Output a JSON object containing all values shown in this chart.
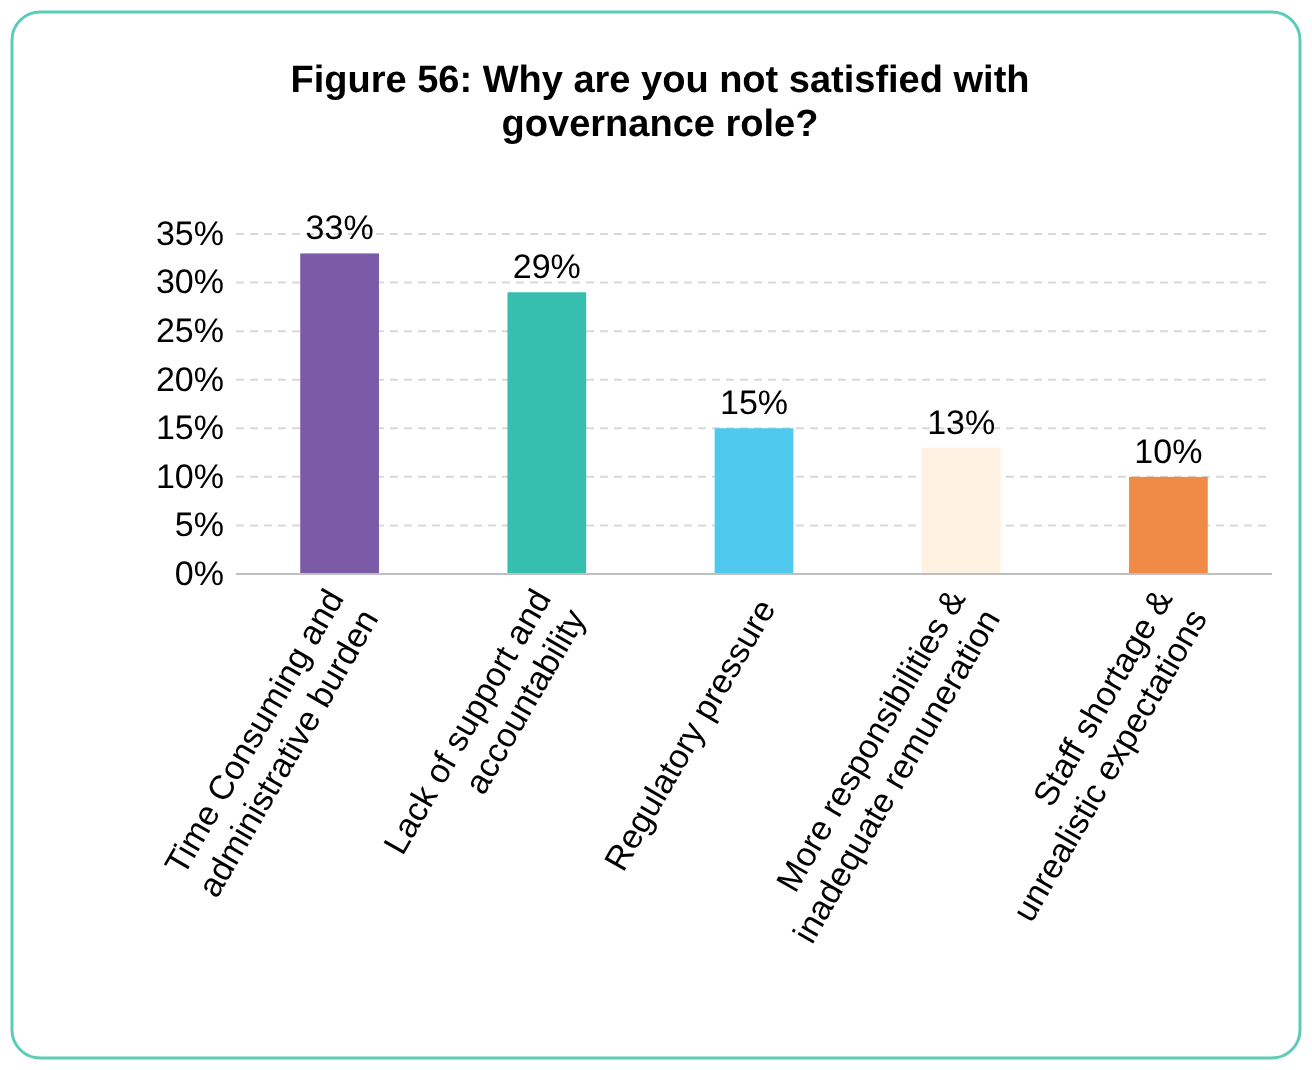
{
  "chart_data": {
    "type": "bar",
    "title": "Figure 56: Why are you not satisfied with governance role?",
    "categories": [
      "Time Consuming and administrative burden",
      "Lack of support and accountability",
      "Regulatory pressure",
      "More responsibilities & inadequate remuneration",
      "Staff shortage & unrealistic expectations"
    ],
    "values": [
      33,
      29,
      15,
      13,
      10
    ],
    "colors": [
      "#7b5ba7",
      "#36bfae",
      "#4fc8ee",
      "#fdf1e2",
      "#ef8b47"
    ],
    "ylim": [
      0,
      35
    ],
    "yticks": [
      {
        "value": 0,
        "label": "0%"
      },
      {
        "value": 5,
        "label": "5%"
      },
      {
        "value": 10,
        "label": "10%"
      },
      {
        "value": 15,
        "label": "15%"
      },
      {
        "value": 20,
        "label": "20%"
      },
      {
        "value": 25,
        "label": "25%"
      },
      {
        "value": 30,
        "label": "30%"
      },
      {
        "value": 35,
        "label": "35%"
      }
    ],
    "grid": "y",
    "value_labels": [
      "33%",
      "29%",
      "15%",
      "13%",
      "10%"
    ]
  }
}
